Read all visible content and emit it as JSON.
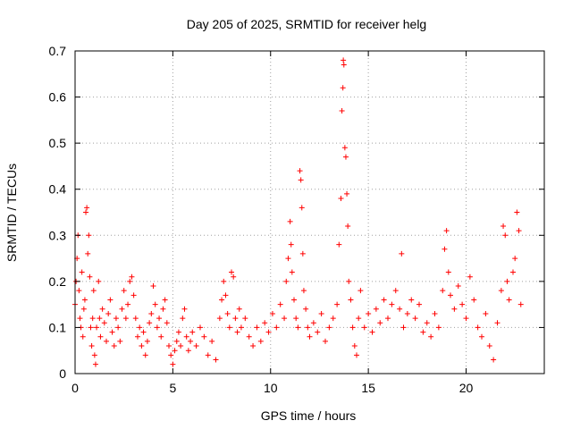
{
  "chart_data": {
    "type": "scatter",
    "title": "Day 205 of 2025, SRMTID for receiver helg",
    "xlabel": "GPS time / hours",
    "ylabel": "SRMTID / TECUs",
    "xlim": [
      0,
      24
    ],
    "ylim": [
      0,
      0.7
    ],
    "xticks": [
      0,
      5,
      10,
      15,
      20
    ],
    "yticks": [
      0,
      0.1,
      0.2,
      0.3,
      0.4,
      0.5,
      0.6,
      0.7
    ],
    "xtick_labels": [
      "0",
      "5",
      "10",
      "15",
      "20"
    ],
    "ytick_labels": [
      "0",
      "0.1",
      "0.2",
      "0.3",
      "0.4",
      "0.5",
      "0.6",
      "0.7"
    ],
    "grid": true,
    "marker": "plus",
    "color": "#ff0000",
    "series": [
      {
        "name": "SRMTID",
        "points": [
          [
            0.0,
            0.15
          ],
          [
            0.05,
            0.2
          ],
          [
            0.1,
            0.25
          ],
          [
            0.15,
            0.3
          ],
          [
            0.2,
            0.18
          ],
          [
            0.25,
            0.12
          ],
          [
            0.3,
            0.1
          ],
          [
            0.35,
            0.22
          ],
          [
            0.4,
            0.08
          ],
          [
            0.45,
            0.14
          ],
          [
            0.5,
            0.16
          ],
          [
            0.55,
            0.35
          ],
          [
            0.6,
            0.36
          ],
          [
            0.65,
            0.26
          ],
          [
            0.7,
            0.3
          ],
          [
            0.75,
            0.21
          ],
          [
            0.8,
            0.1
          ],
          [
            0.85,
            0.06
          ],
          [
            0.9,
            0.12
          ],
          [
            0.95,
            0.18
          ],
          [
            1.0,
            0.04
          ],
          [
            1.05,
            0.02
          ],
          [
            1.1,
            0.1
          ],
          [
            1.2,
            0.2
          ],
          [
            1.25,
            0.12
          ],
          [
            1.3,
            0.08
          ],
          [
            1.4,
            0.14
          ],
          [
            1.5,
            0.11
          ],
          [
            1.6,
            0.07
          ],
          [
            1.7,
            0.13
          ],
          [
            1.8,
            0.16
          ],
          [
            1.9,
            0.09
          ],
          [
            2.0,
            0.06
          ],
          [
            2.1,
            0.12
          ],
          [
            2.2,
            0.1
          ],
          [
            2.3,
            0.07
          ],
          [
            2.4,
            0.14
          ],
          [
            2.5,
            0.18
          ],
          [
            2.6,
            0.12
          ],
          [
            2.7,
            0.15
          ],
          [
            2.8,
            0.2
          ],
          [
            2.9,
            0.21
          ],
          [
            3.0,
            0.17
          ],
          [
            3.1,
            0.12
          ],
          [
            3.2,
            0.08
          ],
          [
            3.3,
            0.1
          ],
          [
            3.4,
            0.06
          ],
          [
            3.5,
            0.09
          ],
          [
            3.6,
            0.04
          ],
          [
            3.7,
            0.07
          ],
          [
            3.8,
            0.11
          ],
          [
            3.9,
            0.13
          ],
          [
            4.0,
            0.19
          ],
          [
            4.1,
            0.15
          ],
          [
            4.2,
            0.1
          ],
          [
            4.3,
            0.12
          ],
          [
            4.4,
            0.08
          ],
          [
            4.5,
            0.14
          ],
          [
            4.6,
            0.16
          ],
          [
            4.7,
            0.11
          ],
          [
            4.8,
            0.06
          ],
          [
            4.9,
            0.04
          ],
          [
            5.0,
            0.02
          ],
          [
            5.1,
            0.05
          ],
          [
            5.2,
            0.07
          ],
          [
            5.3,
            0.09
          ],
          [
            5.4,
            0.06
          ],
          [
            5.5,
            0.12
          ],
          [
            5.6,
            0.14
          ],
          [
            5.7,
            0.08
          ],
          [
            5.8,
            0.05
          ],
          [
            5.9,
            0.07
          ],
          [
            6.0,
            0.09
          ],
          [
            6.2,
            0.06
          ],
          [
            6.4,
            0.1
          ],
          [
            6.6,
            0.08
          ],
          [
            6.8,
            0.04
          ],
          [
            7.0,
            0.07
          ],
          [
            7.2,
            0.03
          ],
          [
            7.4,
            0.12
          ],
          [
            7.5,
            0.16
          ],
          [
            7.6,
            0.2
          ],
          [
            7.7,
            0.17
          ],
          [
            7.8,
            0.13
          ],
          [
            7.9,
            0.1
          ],
          [
            8.0,
            0.22
          ],
          [
            8.1,
            0.21
          ],
          [
            8.2,
            0.12
          ],
          [
            8.3,
            0.09
          ],
          [
            8.4,
            0.14
          ],
          [
            8.5,
            0.1
          ],
          [
            8.7,
            0.12
          ],
          [
            8.9,
            0.08
          ],
          [
            9.1,
            0.06
          ],
          [
            9.3,
            0.1
          ],
          [
            9.5,
            0.07
          ],
          [
            9.7,
            0.11
          ],
          [
            9.9,
            0.09
          ],
          [
            10.1,
            0.13
          ],
          [
            10.3,
            0.1
          ],
          [
            10.5,
            0.15
          ],
          [
            10.7,
            0.12
          ],
          [
            10.8,
            0.2
          ],
          [
            10.9,
            0.25
          ],
          [
            11.0,
            0.33
          ],
          [
            11.05,
            0.28
          ],
          [
            11.1,
            0.22
          ],
          [
            11.2,
            0.16
          ],
          [
            11.3,
            0.12
          ],
          [
            11.4,
            0.1
          ],
          [
            11.5,
            0.44
          ],
          [
            11.55,
            0.42
          ],
          [
            11.6,
            0.36
          ],
          [
            11.65,
            0.26
          ],
          [
            11.7,
            0.18
          ],
          [
            11.8,
            0.14
          ],
          [
            11.9,
            0.1
          ],
          [
            12.0,
            0.08
          ],
          [
            12.2,
            0.11
          ],
          [
            12.4,
            0.09
          ],
          [
            12.6,
            0.13
          ],
          [
            12.8,
            0.07
          ],
          [
            13.0,
            0.1
          ],
          [
            13.2,
            0.12
          ],
          [
            13.4,
            0.15
          ],
          [
            13.5,
            0.28
          ],
          [
            13.6,
            0.38
          ],
          [
            13.65,
            0.57
          ],
          [
            13.7,
            0.62
          ],
          [
            13.72,
            0.68
          ],
          [
            13.75,
            0.67
          ],
          [
            13.8,
            0.49
          ],
          [
            13.85,
            0.47
          ],
          [
            13.9,
            0.39
          ],
          [
            13.95,
            0.32
          ],
          [
            14.0,
            0.2
          ],
          [
            14.1,
            0.16
          ],
          [
            14.2,
            0.1
          ],
          [
            14.3,
            0.06
          ],
          [
            14.4,
            0.04
          ],
          [
            14.5,
            0.12
          ],
          [
            14.6,
            0.18
          ],
          [
            14.8,
            0.1
          ],
          [
            15.0,
            0.13
          ],
          [
            15.2,
            0.09
          ],
          [
            15.4,
            0.14
          ],
          [
            15.6,
            0.11
          ],
          [
            15.8,
            0.16
          ],
          [
            16.0,
            0.12
          ],
          [
            16.2,
            0.15
          ],
          [
            16.4,
            0.18
          ],
          [
            16.6,
            0.14
          ],
          [
            16.7,
            0.26
          ],
          [
            16.8,
            0.1
          ],
          [
            17.0,
            0.13
          ],
          [
            17.2,
            0.16
          ],
          [
            17.4,
            0.12
          ],
          [
            17.6,
            0.15
          ],
          [
            17.8,
            0.09
          ],
          [
            18.0,
            0.11
          ],
          [
            18.2,
            0.08
          ],
          [
            18.4,
            0.13
          ],
          [
            18.6,
            0.1
          ],
          [
            18.8,
            0.18
          ],
          [
            18.9,
            0.27
          ],
          [
            19.0,
            0.31
          ],
          [
            19.1,
            0.22
          ],
          [
            19.2,
            0.17
          ],
          [
            19.4,
            0.14
          ],
          [
            19.6,
            0.19
          ],
          [
            19.8,
            0.15
          ],
          [
            20.0,
            0.12
          ],
          [
            20.2,
            0.21
          ],
          [
            20.4,
            0.16
          ],
          [
            20.6,
            0.1
          ],
          [
            20.8,
            0.08
          ],
          [
            21.0,
            0.13
          ],
          [
            21.2,
            0.06
          ],
          [
            21.4,
            0.03
          ],
          [
            21.6,
            0.11
          ],
          [
            21.8,
            0.18
          ],
          [
            21.9,
            0.32
          ],
          [
            22.0,
            0.3
          ],
          [
            22.1,
            0.2
          ],
          [
            22.2,
            0.16
          ],
          [
            22.4,
            0.22
          ],
          [
            22.5,
            0.25
          ],
          [
            22.6,
            0.35
          ],
          [
            22.7,
            0.31
          ],
          [
            22.8,
            0.15
          ]
        ]
      }
    ]
  }
}
